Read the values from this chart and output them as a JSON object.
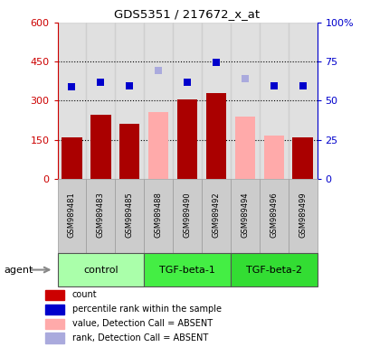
{
  "title": "GDS5351 / 217672_x_at",
  "samples": [
    "GSM989481",
    "GSM989483",
    "GSM989485",
    "GSM989488",
    "GSM989490",
    "GSM989492",
    "GSM989494",
    "GSM989496",
    "GSM989499"
  ],
  "groups": [
    {
      "label": "control",
      "start": 0,
      "end": 2,
      "color": "#AAFFAA"
    },
    {
      "label": "TGF-beta-1",
      "start": 3,
      "end": 5,
      "color": "#44EE44"
    },
    {
      "label": "TGF-beta-2",
      "start": 6,
      "end": 8,
      "color": "#33DD33"
    }
  ],
  "bar_values": [
    160,
    245,
    210,
    null,
    305,
    330,
    null,
    165,
    160
  ],
  "bar_absent": [
    null,
    null,
    null,
    255,
    null,
    null,
    240,
    165,
    null
  ],
  "bar_color_present": "#AA0000",
  "bar_color_absent": "#FFAAAA",
  "perc_present": [
    355,
    370,
    357,
    null,
    370,
    447,
    null,
    357,
    357
  ],
  "perc_absent": [
    null,
    null,
    null,
    415,
    null,
    null,
    385,
    null,
    null
  ],
  "perc_color_present": "#0000CC",
  "perc_color_absent": "#AAAADD",
  "ylim_left": [
    0,
    600
  ],
  "ylim_right": [
    0,
    100
  ],
  "yticks_left": [
    0,
    150,
    300,
    450,
    600
  ],
  "yticks_right": [
    0,
    25,
    50,
    75,
    100
  ],
  "ytick_labels_left": [
    "0",
    "150",
    "300",
    "450",
    "600"
  ],
  "ytick_labels_right": [
    "0",
    "25",
    "50",
    "75",
    "100%"
  ],
  "left_axis_color": "#CC0000",
  "right_axis_color": "#0000CC",
  "legend_items": [
    {
      "label": "count",
      "color": "#CC0000"
    },
    {
      "label": "percentile rank within the sample",
      "color": "#0000CC"
    },
    {
      "label": "value, Detection Call = ABSENT",
      "color": "#FFAAAA"
    },
    {
      "label": "rank, Detection Call = ABSENT",
      "color": "#AAAADD"
    }
  ]
}
